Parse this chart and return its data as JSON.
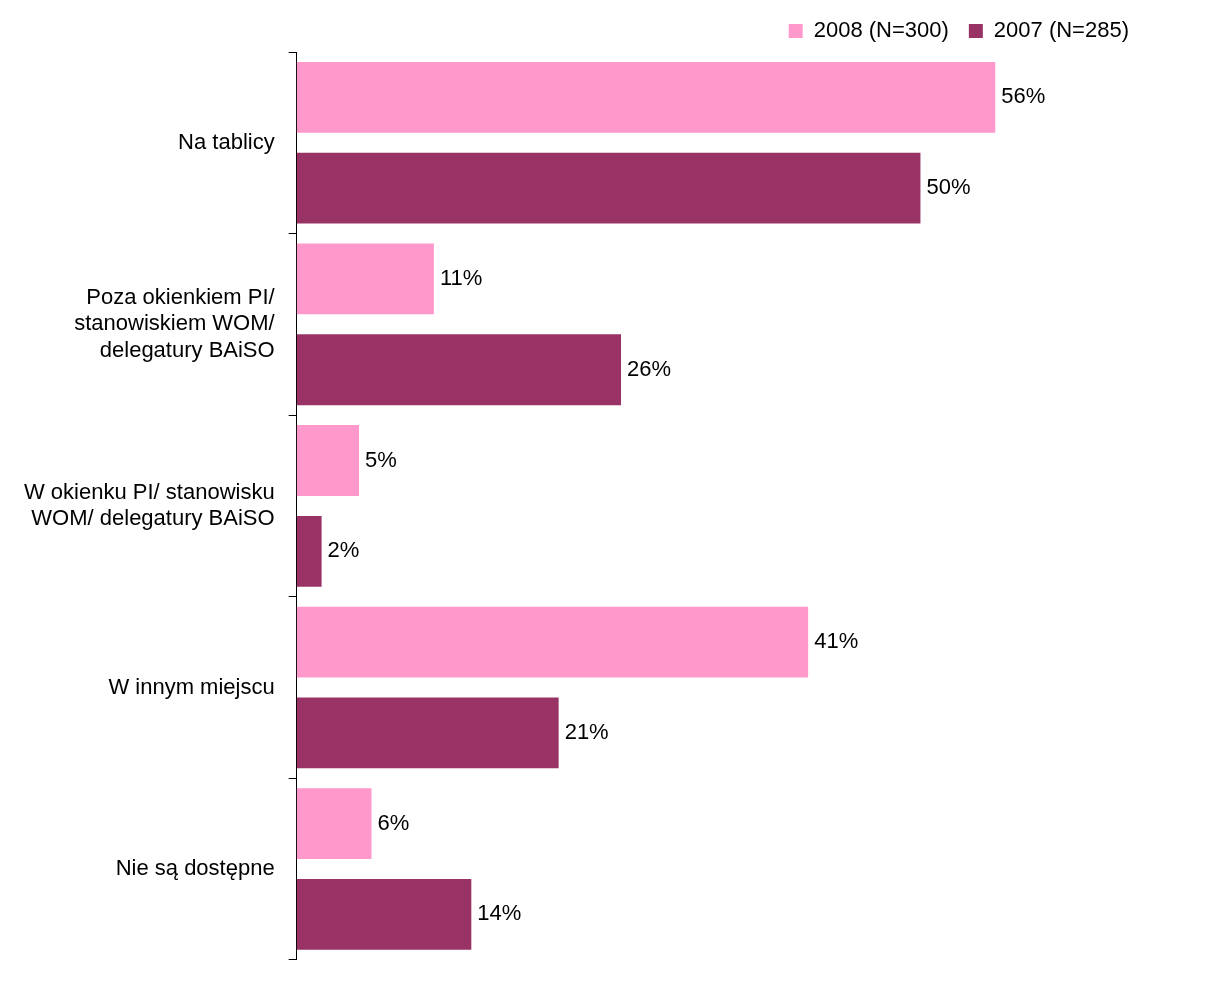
{
  "chart_data": {
    "type": "bar",
    "orientation": "horizontal",
    "categories": [
      "Na tablicy",
      "Poza okienkiem PI/ stanowiskiem WOM/ delegatury BAiSO",
      "W okienku PI/ stanowisku WOM/ delegatury BAiSO",
      "W innym miejscu",
      "Nie są dostępne"
    ],
    "series": [
      {
        "name": "2008 (N=300)",
        "color": "#ff99cc",
        "values": [
          56,
          11,
          5,
          41,
          6
        ],
        "value_labels": [
          "56%",
          "11%",
          "5%",
          "41%",
          "6%"
        ]
      },
      {
        "name": "2007 (N=285)",
        "color": "#993366",
        "values": [
          50,
          26,
          2,
          21,
          14
        ],
        "value_labels": [
          "50%",
          "26%",
          "2%",
          "21%",
          "14%"
        ]
      }
    ],
    "legend": "top right",
    "grid": false
  }
}
